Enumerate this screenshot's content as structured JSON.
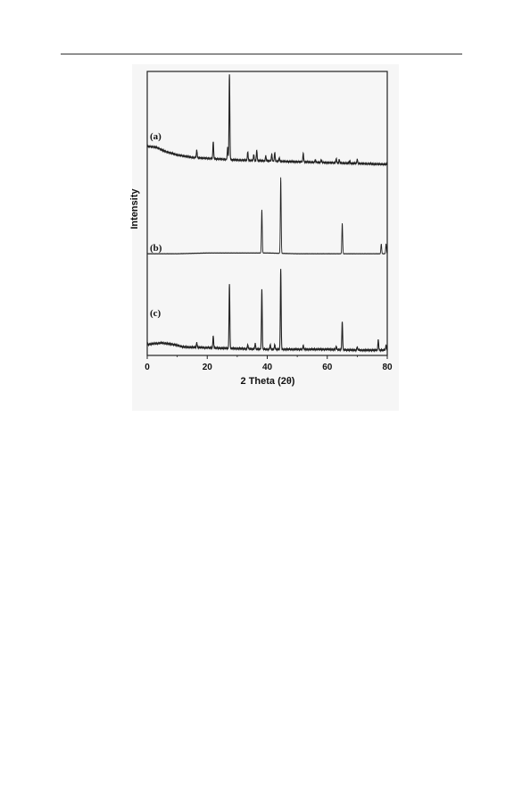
{
  "page": {
    "background": "#ffffff"
  },
  "chart_data": {
    "type": "line",
    "title": "",
    "xlabel": "2 Theta (2θ)",
    "ylabel": "Intensity",
    "xlim": [
      0,
      80
    ],
    "xticks": [
      0,
      20,
      40,
      60,
      80
    ],
    "grid": false,
    "line_color": "#222222",
    "series": [
      {
        "name": "(a)",
        "baseline_profile": [
          [
            0,
            22
          ],
          [
            3,
            21
          ],
          [
            6,
            16
          ],
          [
            10,
            12
          ],
          [
            15,
            9
          ],
          [
            20,
            8
          ],
          [
            30,
            6
          ],
          [
            40,
            5
          ],
          [
            50,
            4
          ],
          [
            60,
            3
          ],
          [
            70,
            2
          ],
          [
            80,
            1
          ]
        ],
        "peaks": [
          [
            16.5,
            9
          ],
          [
            22,
            20
          ],
          [
            26.8,
            14
          ],
          [
            27.4,
            100
          ],
          [
            33.5,
            10
          ],
          [
            35.5,
            7
          ],
          [
            36.5,
            12
          ],
          [
            39.5,
            6
          ],
          [
            41.5,
            8
          ],
          [
            42.5,
            10
          ],
          [
            44.0,
            4
          ],
          [
            52.0,
            10
          ],
          [
            56.0,
            3
          ],
          [
            58.0,
            3
          ],
          [
            63.0,
            5
          ],
          [
            64.0,
            4
          ],
          [
            67.5,
            3
          ],
          [
            70.0,
            5
          ]
        ]
      },
      {
        "name": "(b)",
        "baseline_profile": [
          [
            0,
            1
          ],
          [
            10,
            1
          ],
          [
            20,
            2
          ],
          [
            30,
            2
          ],
          [
            40,
            2
          ],
          [
            50,
            1
          ],
          [
            60,
            1
          ],
          [
            70,
            1
          ],
          [
            80,
            1
          ]
        ],
        "peaks": [
          [
            38.2,
            57
          ],
          [
            44.5,
            100
          ],
          [
            65.0,
            40
          ],
          [
            78.0,
            13
          ],
          [
            79.6,
            13
          ]
        ]
      },
      {
        "name": "(c)",
        "baseline_profile": [
          [
            0,
            8
          ],
          [
            2,
            9
          ],
          [
            5,
            10
          ],
          [
            9,
            8
          ],
          [
            12,
            5
          ],
          [
            20,
            4
          ],
          [
            30,
            3
          ],
          [
            40,
            2
          ],
          [
            50,
            2
          ],
          [
            60,
            2
          ],
          [
            70,
            1
          ],
          [
            80,
            1
          ]
        ],
        "peaks": [
          [
            16.5,
            6
          ],
          [
            22.0,
            15
          ],
          [
            27.4,
            80
          ],
          [
            33.5,
            5
          ],
          [
            36.0,
            7
          ],
          [
            38.2,
            74
          ],
          [
            41.0,
            6
          ],
          [
            42.5,
            6
          ],
          [
            44.5,
            100
          ],
          [
            52.0,
            5
          ],
          [
            63.0,
            4
          ],
          [
            65.0,
            35
          ],
          [
            70.0,
            4
          ],
          [
            77.0,
            13
          ],
          [
            79.6,
            6
          ]
        ]
      }
    ]
  }
}
